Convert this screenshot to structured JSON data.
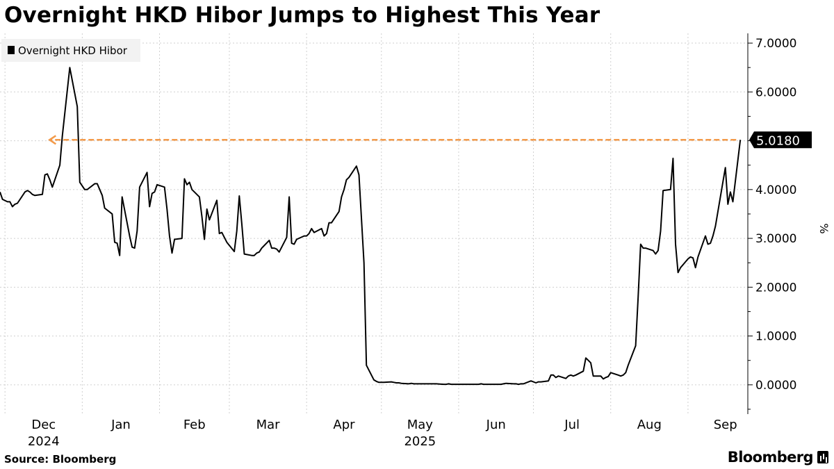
{
  "title": "Overnight HKD Hibor Jumps to Highest This Year",
  "source": "Source: Bloomberg",
  "brand": "Bloomberg",
  "brand_icon": "bloomberg-terminal-icon",
  "colors": {
    "line": "#000000",
    "reference": "#f39a4a",
    "grid": "#cfcfcf",
    "legend_bg": "#f2f2f2"
  },
  "chart_data": {
    "type": "line",
    "title": "Overnight HKD Hibor Jumps to Highest This Year",
    "ylabel": "%",
    "ylim": [
      -0.6,
      7.2
    ],
    "y_ticks": [
      "7.0000",
      "6.0000",
      "5.0000",
      "4.0000",
      "3.0000",
      "2.0000",
      "1.0000",
      "0.0000"
    ],
    "y_tick_values": [
      7,
      6,
      5,
      4,
      3,
      2,
      1,
      0
    ],
    "x_range": [
      "2024-11-29",
      "2025-09-25"
    ],
    "x_months": [
      {
        "label": "Dec",
        "year": "2024",
        "date": "2024-12-01"
      },
      {
        "label": "Jan",
        "year": "",
        "date": "2025-01-01"
      },
      {
        "label": "Feb",
        "year": "",
        "date": "2025-02-01"
      },
      {
        "label": "Mar",
        "year": "",
        "date": "2025-03-01"
      },
      {
        "label": "Apr",
        "year": "",
        "date": "2025-04-01"
      },
      {
        "label": "May",
        "year": "2025",
        "date": "2025-05-01"
      },
      {
        "label": "Jun",
        "year": "",
        "date": "2025-06-01"
      },
      {
        "label": "Jul",
        "year": "",
        "date": "2025-07-01"
      },
      {
        "label": "Aug",
        "year": "",
        "date": "2025-08-01"
      },
      {
        "label": "Sep",
        "year": "",
        "date": "2025-09-01"
      }
    ],
    "legend": "top-left",
    "grid": true,
    "series": [
      {
        "name": "Overnight HKD Hibor",
        "points": [
          [
            "2024-11-29",
            3.95
          ],
          [
            "2024-11-30",
            3.8
          ],
          [
            "2024-12-02",
            3.75
          ],
          [
            "2024-12-03",
            3.75
          ],
          [
            "2024-12-04",
            3.65
          ],
          [
            "2024-12-05",
            3.7
          ],
          [
            "2024-12-06",
            3.72
          ],
          [
            "2024-12-09",
            3.95
          ],
          [
            "2024-12-10",
            3.98
          ],
          [
            "2024-12-11",
            3.95
          ],
          [
            "2024-12-12",
            3.9
          ],
          [
            "2024-12-13",
            3.88
          ],
          [
            "2024-12-16",
            3.9
          ],
          [
            "2024-12-17",
            4.3
          ],
          [
            "2024-12-18",
            4.32
          ],
          [
            "2024-12-19",
            4.2
          ],
          [
            "2024-12-20",
            4.05
          ],
          [
            "2024-12-23",
            4.5
          ],
          [
            "2024-12-24",
            5.1
          ],
          [
            "2024-12-27",
            6.5
          ],
          [
            "2024-12-30",
            5.7
          ],
          [
            "2024-12-31",
            4.15
          ],
          [
            "2025-01-02",
            4.0
          ],
          [
            "2025-01-03",
            4.0
          ],
          [
            "2025-01-06",
            4.12
          ],
          [
            "2025-01-07",
            4.12
          ],
          [
            "2025-01-08",
            4.0
          ],
          [
            "2025-01-09",
            3.88
          ],
          [
            "2025-01-10",
            3.62
          ],
          [
            "2025-01-13",
            3.5
          ],
          [
            "2025-01-14",
            2.92
          ],
          [
            "2025-01-15",
            2.9
          ],
          [
            "2025-01-16",
            2.65
          ],
          [
            "2025-01-17",
            3.85
          ],
          [
            "2025-01-20",
            3.05
          ],
          [
            "2025-01-21",
            2.82
          ],
          [
            "2025-01-22",
            2.8
          ],
          [
            "2025-01-23",
            3.15
          ],
          [
            "2025-01-24",
            4.05
          ],
          [
            "2025-01-27",
            4.35
          ],
          [
            "2025-01-28",
            3.65
          ],
          [
            "2025-01-29",
            3.92
          ],
          [
            "2025-01-30",
            3.95
          ],
          [
            "2025-01-31",
            4.1
          ],
          [
            "2025-02-03",
            4.05
          ],
          [
            "2025-02-04",
            3.6
          ],
          [
            "2025-02-05",
            3.05
          ],
          [
            "2025-02-06",
            2.7
          ],
          [
            "2025-02-07",
            2.98
          ],
          [
            "2025-02-10",
            3.0
          ],
          [
            "2025-02-11",
            4.22
          ],
          [
            "2025-02-12",
            4.1
          ],
          [
            "2025-02-13",
            4.15
          ],
          [
            "2025-02-14",
            4.0
          ],
          [
            "2025-02-17",
            3.85
          ],
          [
            "2025-02-18",
            3.45
          ],
          [
            "2025-02-19",
            2.98
          ],
          [
            "2025-02-20",
            3.6
          ],
          [
            "2025-02-21",
            3.38
          ],
          [
            "2025-02-24",
            3.78
          ],
          [
            "2025-02-25",
            3.1
          ],
          [
            "2025-02-26",
            3.12
          ],
          [
            "2025-02-27",
            3.02
          ],
          [
            "2025-02-28",
            2.92
          ],
          [
            "2025-03-03",
            2.73
          ],
          [
            "2025-03-04",
            3.15
          ],
          [
            "2025-03-05",
            3.87
          ],
          [
            "2025-03-06",
            3.3
          ],
          [
            "2025-03-07",
            2.68
          ],
          [
            "2025-03-10",
            2.65
          ],
          [
            "2025-03-11",
            2.65
          ],
          [
            "2025-03-12",
            2.7
          ],
          [
            "2025-03-13",
            2.72
          ],
          [
            "2025-03-14",
            2.8
          ],
          [
            "2025-03-17",
            2.96
          ],
          [
            "2025-03-18",
            2.8
          ],
          [
            "2025-03-19",
            2.8
          ],
          [
            "2025-03-20",
            2.78
          ],
          [
            "2025-03-21",
            2.72
          ],
          [
            "2025-03-24",
            3.02
          ],
          [
            "2025-03-25",
            3.85
          ],
          [
            "2025-03-26",
            2.9
          ],
          [
            "2025-03-27",
            2.88
          ],
          [
            "2025-03-28",
            2.98
          ],
          [
            "2025-03-31",
            3.05
          ],
          [
            "2025-04-01",
            3.05
          ],
          [
            "2025-04-02",
            3.1
          ],
          [
            "2025-04-03",
            3.2
          ],
          [
            "2025-04-04",
            3.12
          ],
          [
            "2025-04-07",
            3.2
          ],
          [
            "2025-04-08",
            3.05
          ],
          [
            "2025-04-09",
            3.1
          ],
          [
            "2025-04-10",
            3.32
          ],
          [
            "2025-04-11",
            3.32
          ],
          [
            "2025-04-14",
            3.55
          ],
          [
            "2025-04-15",
            3.85
          ],
          [
            "2025-04-16",
            4.0
          ],
          [
            "2025-04-17",
            4.2
          ],
          [
            "2025-04-18",
            4.25
          ],
          [
            "2025-04-21",
            4.48
          ],
          [
            "2025-04-22",
            4.3
          ],
          [
            "2025-04-23",
            3.4
          ],
          [
            "2025-04-24",
            2.5
          ],
          [
            "2025-04-25",
            0.4
          ],
          [
            "2025-04-28",
            0.1
          ],
          [
            "2025-04-29",
            0.07
          ],
          [
            "2025-04-30",
            0.05
          ],
          [
            "2025-05-02",
            0.05
          ],
          [
            "2025-05-05",
            0.06
          ],
          [
            "2025-05-06",
            0.05
          ],
          [
            "2025-05-07",
            0.04
          ],
          [
            "2025-05-08",
            0.04
          ],
          [
            "2025-05-09",
            0.03
          ],
          [
            "2025-05-12",
            0.02
          ],
          [
            "2025-05-13",
            0.03
          ],
          [
            "2025-05-14",
            0.02
          ],
          [
            "2025-05-15",
            0.02
          ],
          [
            "2025-05-16",
            0.02
          ],
          [
            "2025-05-19",
            0.02
          ],
          [
            "2025-05-20",
            0.02
          ],
          [
            "2025-05-21",
            0.02
          ],
          [
            "2025-05-22",
            0.02
          ],
          [
            "2025-05-23",
            0.02
          ],
          [
            "2025-05-26",
            0.01
          ],
          [
            "2025-05-27",
            0.01
          ],
          [
            "2025-05-28",
            0.02
          ],
          [
            "2025-05-29",
            0.01
          ],
          [
            "2025-06-02",
            0.01
          ],
          [
            "2025-06-03",
            0.01
          ],
          [
            "2025-06-04",
            0.01
          ],
          [
            "2025-06-05",
            0.01
          ],
          [
            "2025-06-06",
            0.01
          ],
          [
            "2025-06-09",
            0.01
          ],
          [
            "2025-06-10",
            0.02
          ],
          [
            "2025-06-11",
            0.01
          ],
          [
            "2025-06-12",
            0.01
          ],
          [
            "2025-06-13",
            0.01
          ],
          [
            "2025-06-16",
            0.01
          ],
          [
            "2025-06-17",
            0.01
          ],
          [
            "2025-06-18",
            0.01
          ],
          [
            "2025-06-19",
            0.02
          ],
          [
            "2025-06-20",
            0.03
          ],
          [
            "2025-06-23",
            0.02
          ],
          [
            "2025-06-24",
            0.02
          ],
          [
            "2025-06-25",
            0.01
          ],
          [
            "2025-06-26",
            0.02
          ],
          [
            "2025-06-27",
            0.02
          ],
          [
            "2025-06-30",
            0.08
          ],
          [
            "2025-07-02",
            0.04
          ],
          [
            "2025-07-03",
            0.06
          ],
          [
            "2025-07-04",
            0.06
          ],
          [
            "2025-07-07",
            0.08
          ],
          [
            "2025-07-08",
            0.2
          ],
          [
            "2025-07-09",
            0.2
          ],
          [
            "2025-07-10",
            0.15
          ],
          [
            "2025-07-11",
            0.18
          ],
          [
            "2025-07-14",
            0.13
          ],
          [
            "2025-07-15",
            0.18
          ],
          [
            "2025-07-16",
            0.2
          ],
          [
            "2025-07-17",
            0.18
          ],
          [
            "2025-07-18",
            0.2
          ],
          [
            "2025-07-21",
            0.28
          ],
          [
            "2025-07-22",
            0.55
          ],
          [
            "2025-07-23",
            0.5
          ],
          [
            "2025-07-24",
            0.45
          ],
          [
            "2025-07-25",
            0.18
          ],
          [
            "2025-07-28",
            0.18
          ],
          [
            "2025-07-29",
            0.12
          ],
          [
            "2025-07-30",
            0.15
          ],
          [
            "2025-07-31",
            0.17
          ],
          [
            "2025-08-01",
            0.25
          ],
          [
            "2025-08-04",
            0.2
          ],
          [
            "2025-08-05",
            0.18
          ],
          [
            "2025-08-06",
            0.2
          ],
          [
            "2025-08-07",
            0.25
          ],
          [
            "2025-08-08",
            0.4
          ],
          [
            "2025-08-11",
            0.8
          ],
          [
            "2025-08-12",
            1.8
          ],
          [
            "2025-08-13",
            2.88
          ],
          [
            "2025-08-14",
            2.8
          ],
          [
            "2025-08-15",
            2.8
          ],
          [
            "2025-08-18",
            2.75
          ],
          [
            "2025-08-19",
            2.68
          ],
          [
            "2025-08-20",
            2.75
          ],
          [
            "2025-08-21",
            3.15
          ],
          [
            "2025-08-22",
            3.98
          ],
          [
            "2025-08-25",
            4.0
          ],
          [
            "2025-08-26",
            4.64
          ],
          [
            "2025-08-27",
            2.88
          ],
          [
            "2025-08-28",
            2.3
          ],
          [
            "2025-08-29",
            2.4
          ],
          [
            "2025-09-01",
            2.58
          ],
          [
            "2025-09-02",
            2.62
          ],
          [
            "2025-09-03",
            2.6
          ],
          [
            "2025-09-04",
            2.4
          ],
          [
            "2025-09-05",
            2.62
          ],
          [
            "2025-09-08",
            3.05
          ],
          [
            "2025-09-09",
            2.88
          ],
          [
            "2025-09-10",
            2.9
          ],
          [
            "2025-09-11",
            3.05
          ],
          [
            "2025-09-12",
            3.25
          ],
          [
            "2025-09-15",
            4.15
          ],
          [
            "2025-09-16",
            4.45
          ],
          [
            "2025-09-17",
            3.7
          ],
          [
            "2025-09-18",
            3.95
          ],
          [
            "2025-09-19",
            3.75
          ],
          [
            "2025-09-22",
            5.018
          ]
        ]
      }
    ],
    "annotations": [
      {
        "type": "reference-arrow",
        "value": 5.018,
        "from_date": "2025-09-22",
        "to_date": "2024-12-20",
        "style": "dashed",
        "color": "#f39a4a"
      }
    ],
    "last_value_label": "5.0180"
  }
}
